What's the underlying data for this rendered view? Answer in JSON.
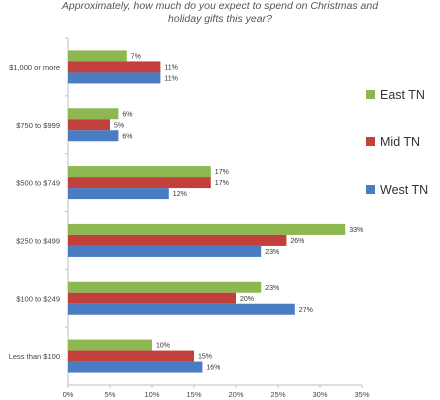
{
  "chart_data": {
    "type": "bar",
    "orientation": "horizontal",
    "title_lines": [
      "Approximately, how much do you expect to spend on Christmas and",
      "holiday gifts this year?"
    ],
    "categories": [
      "$1,000 or more",
      "$750 to $999",
      "$500 to $749",
      "$250 to $499",
      "$100 to $249",
      "Less than $100"
    ],
    "series": [
      {
        "name": "East TN",
        "color": "#8db750",
        "values": [
          7,
          6,
          17,
          33,
          23,
          10
        ]
      },
      {
        "name": "Mid TN",
        "color": "#c2403c",
        "values": [
          11,
          5,
          17,
          26,
          20,
          15
        ]
      },
      {
        "name": "West TN",
        "color": "#4a7cc1",
        "values": [
          11,
          6,
          12,
          23,
          27,
          16
        ]
      }
    ],
    "value_suffix": "%",
    "xlim": [
      0,
      35
    ],
    "xticks": [
      "0%",
      "5%",
      "10%",
      "15%",
      "20%",
      "25%",
      "30%",
      "35%"
    ],
    "grid": false,
    "legend_position": "right"
  }
}
